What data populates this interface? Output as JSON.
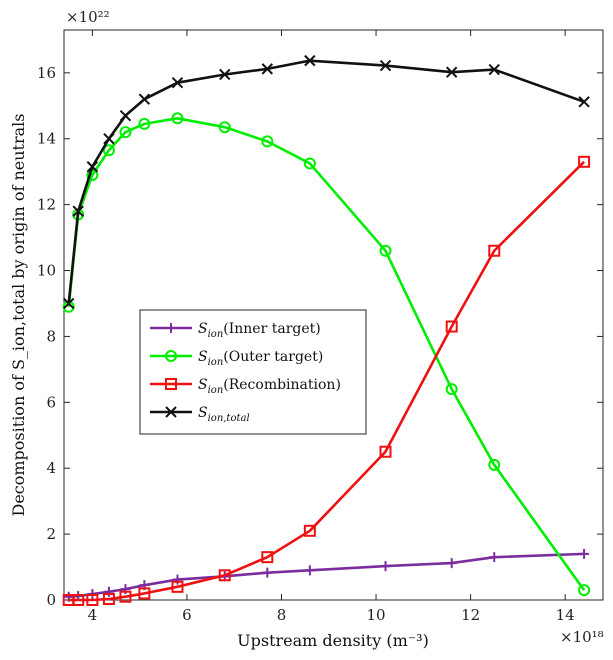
{
  "chart_data": {
    "type": "line",
    "xlabel": "Upstream density (m⁻³)",
    "ylabel": "Decomposition of S_ion,total by origin of neutrals",
    "x_multiplier": "×10¹⁸",
    "y_multiplier": "×10²²",
    "xlim": [
      3.4,
      14.8
    ],
    "ylim": [
      0,
      17.3
    ],
    "xticks": [
      "4",
      "6",
      "8",
      "10",
      "12",
      "14"
    ],
    "xtick_values": [
      4,
      6,
      8,
      10,
      12,
      14
    ],
    "yticks": [
      "0",
      "2",
      "4",
      "6",
      "8",
      "10",
      "12",
      "14",
      "16"
    ],
    "ytick_values": [
      0,
      2,
      4,
      6,
      8,
      10,
      12,
      14,
      16
    ],
    "x": [
      3.5,
      3.7,
      4.0,
      4.35,
      4.7,
      5.1,
      5.8,
      6.8,
      7.7,
      8.6,
      10.2,
      11.6,
      12.5,
      14.4
    ],
    "legend_position": "middle-left",
    "series": [
      {
        "name": "Sion(Inner target)",
        "base": "S",
        "sub": "ion",
        "suffix": "(Inner target)",
        "color": "#7b2d9e",
        "marker": "plus",
        "values": [
          0.1,
          0.12,
          0.18,
          0.25,
          0.33,
          0.45,
          0.62,
          0.72,
          0.83,
          0.9,
          1.03,
          1.12,
          1.3,
          1.4
        ]
      },
      {
        "name": "Sion(Outer target)",
        "base": "S",
        "sub": "ion",
        "suffix": "(Outer target)",
        "color": "#00ee00",
        "marker": "circle",
        "values": [
          8.9,
          11.7,
          12.9,
          13.65,
          14.2,
          14.45,
          14.62,
          14.35,
          13.92,
          13.25,
          10.6,
          6.4,
          4.1,
          0.3
        ]
      },
      {
        "name": "Sion(Recombination)",
        "base": "S",
        "sub": "ion",
        "suffix": "(Recombination)",
        "color": "#ee1111",
        "marker": "square",
        "values": [
          0.0,
          0.0,
          0.0,
          0.03,
          0.1,
          0.2,
          0.4,
          0.75,
          1.3,
          2.1,
          4.5,
          8.3,
          10.6,
          13.3
        ]
      },
      {
        "name": "Sion,total",
        "base": "S",
        "sub": "ion,total",
        "suffix": "",
        "color": "#111111",
        "marker": "x",
        "values": [
          9.0,
          11.8,
          13.15,
          14.0,
          14.7,
          15.2,
          15.7,
          15.95,
          16.12,
          16.37,
          16.22,
          16.02,
          16.1,
          15.12
        ]
      }
    ]
  }
}
